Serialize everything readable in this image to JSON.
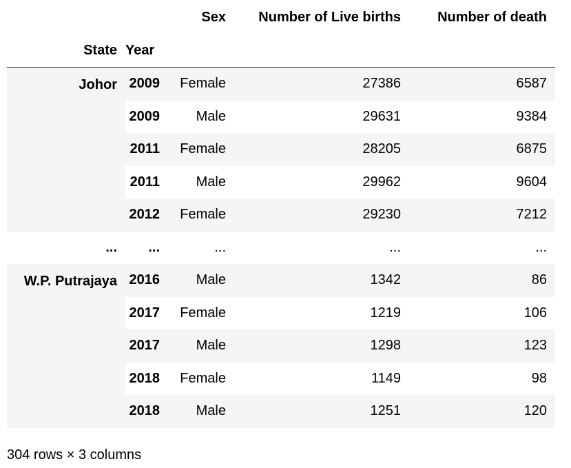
{
  "table": {
    "columns": {
      "sex": "Sex",
      "live_births": "Number of Live births",
      "death": "Number of death"
    },
    "index_names": {
      "state": "State",
      "year": "Year"
    },
    "groups": [
      {
        "state": "Johor",
        "rows": [
          {
            "year": "2009",
            "sex": "Female",
            "live_births": "27386",
            "death": "6587"
          },
          {
            "year": "2009",
            "sex": "Male",
            "live_births": "29631",
            "death": "9384"
          },
          {
            "year": "2011",
            "sex": "Female",
            "live_births": "28205",
            "death": "6875"
          },
          {
            "year": "2011",
            "sex": "Male",
            "live_births": "29962",
            "death": "9604"
          },
          {
            "year": "2012",
            "sex": "Female",
            "live_births": "29230",
            "death": "7212"
          }
        ]
      },
      {
        "state": "W.P. Putrajaya",
        "rows": [
          {
            "year": "2016",
            "sex": "Male",
            "live_births": "1342",
            "death": "86"
          },
          {
            "year": "2017",
            "sex": "Female",
            "live_births": "1219",
            "death": "106"
          },
          {
            "year": "2017",
            "sex": "Male",
            "live_births": "1298",
            "death": "123"
          },
          {
            "year": "2018",
            "sex": "Female",
            "live_births": "1149",
            "death": "98"
          },
          {
            "year": "2018",
            "sex": "Male",
            "live_births": "1251",
            "death": "120"
          }
        ]
      }
    ],
    "ellipsis": {
      "state": "...",
      "year": "...",
      "sex": "...",
      "live_births": "...",
      "death": "..."
    }
  },
  "footer": {
    "summary": "304 rows × 3 columns"
  },
  "colors": {
    "stripe": "#f5f5f5",
    "rule": "#222222",
    "text": "#000000"
  }
}
